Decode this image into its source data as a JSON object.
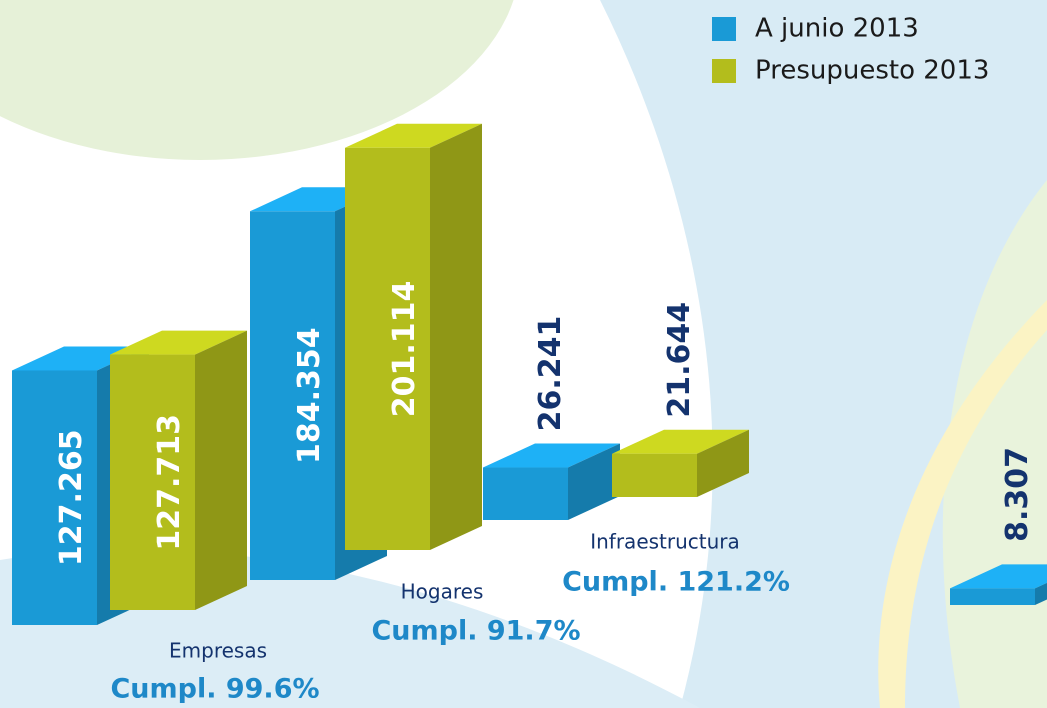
{
  "chart_data": {
    "type": "bar",
    "categories": [
      "Empresas",
      "Hogares",
      "Infraestructura",
      null
    ],
    "annotations": [
      "Cumpl. 99.6%",
      "Cumpl. 91.7%",
      "Cumpl. 121.2%",
      null
    ],
    "series": [
      {
        "name": "A junio 2013",
        "color": "#1a9ad6",
        "values": [
          127.265,
          184.354,
          26.241,
          8.307
        ]
      },
      {
        "name": "Presupuesto 2013",
        "color": "#b3bd1c",
        "values": [
          127.713,
          201.114,
          21.644,
          null
        ]
      }
    ]
  }
}
